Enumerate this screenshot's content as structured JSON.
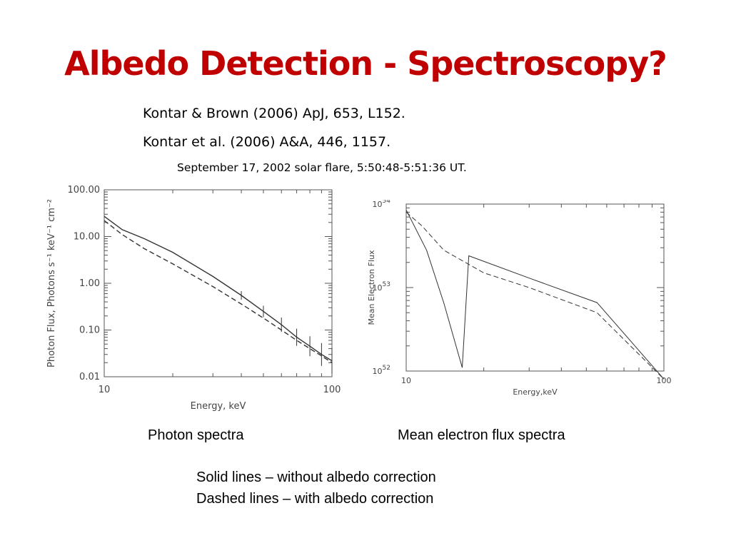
{
  "title": "Albedo Detection - Spectroscopy?",
  "references": [
    "Kontar & Brown (2006) ApJ, 653, L152.",
    "Kontar et al. (2006) A&A, 446, 1157."
  ],
  "event": "September 17, 2002 solar flare, 5:50:48-5:51:36 UT.",
  "captions": {
    "left": "Photon spectra",
    "right": "Mean electron flux spectra",
    "solid": "Solid lines – without albedo correction",
    "dashed": "Dashed lines – with albedo correction"
  },
  "chart_data": [
    {
      "type": "line",
      "xlabel": "Energy, keV",
      "ylabel": "Photon Flux, Photons s⁻¹ keV⁻¹ cm⁻²",
      "xscale": "log",
      "yscale": "log",
      "xlim": [
        10,
        100
      ],
      "ylim": [
        0.01,
        100
      ],
      "x_ticks": [
        "10",
        "100"
      ],
      "y_ticks": [
        "100.00",
        "10.00",
        "1.00",
        "0.10",
        "0.01"
      ],
      "series": [
        {
          "style": "solid",
          "x": [
            10,
            12,
            15,
            20,
            30,
            40,
            50,
            60,
            70,
            80,
            90,
            100
          ],
          "y": [
            27,
            14,
            9,
            4.6,
            1.4,
            0.55,
            0.25,
            0.13,
            0.07,
            0.045,
            0.03,
            0.022
          ]
        },
        {
          "style": "dashed",
          "x": [
            10,
            12,
            15,
            20,
            30,
            40,
            50,
            60,
            70,
            80,
            90,
            100
          ],
          "y": [
            22,
            11,
            5.5,
            2.6,
            0.85,
            0.36,
            0.18,
            0.1,
            0.06,
            0.04,
            0.028,
            0.02
          ]
        }
      ]
    },
    {
      "type": "line",
      "xlabel": "Energy,keV",
      "ylabel": "Mean Electron Flux",
      "xscale": "log",
      "yscale": "log",
      "xlim": [
        10,
        100
      ],
      "ylim": [
        1e+52,
        1e+54
      ],
      "x_ticks": [
        "10",
        "100"
      ],
      "y_ticks": [
        "10",
        "10",
        "10"
      ],
      "y_tick_exponents": [
        "54",
        "53",
        "52"
      ],
      "series": [
        {
          "style": "solid",
          "x": [
            10,
            12,
            14,
            16.5,
            17.5,
            30,
            55,
            100
          ],
          "y": [
            8.5e+53,
            2.8e+53,
            6.5e+52,
            1.1e+52,
            2.4e+53,
            1.3e+53,
            6.6e+52,
            8e+51
          ]
        },
        {
          "style": "dashed",
          "x": [
            10,
            11.5,
            14,
            20,
            30,
            55,
            100
          ],
          "y": [
            8e+53,
            5.5e+53,
            2.8e+53,
            1.5e+53,
            1e+53,
            5e+52,
            8e+51
          ]
        }
      ]
    }
  ]
}
